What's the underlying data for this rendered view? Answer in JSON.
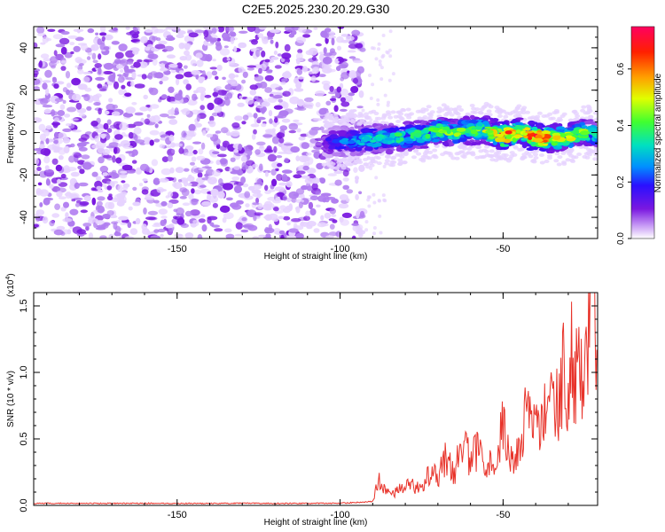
{
  "figure_title": "C2E5.2025.230.20.29.G30",
  "colors": {
    "noise_low": "#e6d2ff",
    "noise_mid": "#b07cf0",
    "noise_high": "#7a18e0",
    "snr_line": "#e8332a",
    "axis": "#000000"
  },
  "chart_data": [
    {
      "type": "heatmap",
      "title": "C2E5.2025.230.20.29.G30",
      "xlabel": "Height of straight line (km)",
      "ylabel": "Frequency (Hz)",
      "xlim": [
        -194,
        -21
      ],
      "ylim": [
        -50,
        50
      ],
      "x_ticks": [
        -150,
        -100,
        -50
      ],
      "y_ticks": [
        -40,
        -20,
        0,
        20,
        40
      ],
      "colorbar": {
        "label": "Normalized spectral amplitude",
        "range": [
          0.0,
          0.75
        ],
        "ticks": [
          0.0,
          0.2,
          0.4,
          0.6
        ],
        "colormap": "rainbow (violet to red)"
      },
      "regions": [
        {
          "description": "broadband noise",
          "x_range": [
            -194,
            -93
          ],
          "y_range": [
            -50,
            50
          ],
          "amplitude_range": [
            0.0,
            0.1
          ]
        },
        {
          "description": "signal band",
          "x_range": [
            -105,
            -21
          ],
          "amplitude_range": [
            0.05,
            0.75
          ]
        }
      ],
      "signal_center_freq": {
        "x": [
          -105,
          -100,
          -95,
          -90,
          -85,
          -80,
          -75,
          -70,
          -65,
          -60,
          -55,
          -50,
          -45,
          -40,
          -35,
          -30,
          -25,
          -21
        ],
        "y": [
          -5,
          -4,
          -4,
          -3,
          -3,
          -2,
          -1,
          1,
          0,
          1,
          1,
          -2,
          0,
          -2,
          -3,
          -2,
          0,
          -1
        ]
      },
      "peak_amplitude_along_signal": {
        "x": [
          -105,
          -100,
          -95,
          -90,
          -85,
          -80,
          -75,
          -70,
          -65,
          -60,
          -55,
          -50,
          -45,
          -40,
          -35,
          -30,
          -25,
          -21
        ],
        "y": [
          0.15,
          0.25,
          0.3,
          0.35,
          0.35,
          0.4,
          0.4,
          0.45,
          0.45,
          0.45,
          0.5,
          0.7,
          0.55,
          0.75,
          0.55,
          0.5,
          0.45,
          0.4
        ]
      }
    },
    {
      "type": "line",
      "xlabel": "Height of straight line (km)",
      "ylabel": "SNR (10 * v/v)",
      "y_multiplier_label": "(x10",
      "y_multiplier_exp": "4",
      "y_multiplier_close": ")",
      "xlim": [
        -194,
        -21
      ],
      "ylim": [
        0,
        16000
      ],
      "x_ticks": [
        -150,
        -100,
        -50
      ],
      "y_ticks": [
        0.0,
        0.5,
        1.0,
        1.5
      ],
      "y_tick_labels": [
        "0.0",
        "0.5",
        "1.0",
        "1.5"
      ],
      "series": [
        {
          "x": [
            -194,
            -180,
            -170,
            -160,
            -150,
            -140,
            -130,
            -120,
            -110,
            -100,
            -95,
            -90,
            -88,
            -85,
            -80,
            -75,
            -72,
            -70,
            -68,
            -65,
            -62,
            -60,
            -58,
            -55,
            -52,
            -50,
            -48,
            -45,
            -42,
            -40,
            -38,
            -35,
            -33,
            -31,
            -30,
            -29,
            -28,
            -27,
            -26,
            -25,
            -24,
            -23,
            -22,
            -21
          ],
          "y": [
            150,
            160,
            150,
            160,
            150,
            150,
            160,
            150,
            150,
            170,
            220,
            300,
            2000,
            800,
            1400,
            1500,
            2800,
            2200,
            3500,
            2500,
            4800,
            3200,
            4200,
            3500,
            3000,
            6500,
            3000,
            4500,
            8000,
            5500,
            6000,
            9500,
            7500,
            10800,
            8000,
            12000,
            9000,
            13000,
            10000,
            11500,
            12000,
            16000,
            15000,
            9000
          ]
        }
      ]
    }
  ]
}
